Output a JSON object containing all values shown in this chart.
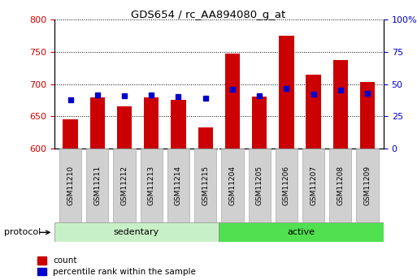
{
  "title": "GDS654 / rc_AA894080_g_at",
  "samples": [
    "GSM11210",
    "GSM11211",
    "GSM11212",
    "GSM11213",
    "GSM11214",
    "GSM11215",
    "GSM11204",
    "GSM11205",
    "GSM11206",
    "GSM11207",
    "GSM11208",
    "GSM11209"
  ],
  "count_values": [
    645,
    679,
    665,
    679,
    675,
    632,
    747,
    681,
    775,
    715,
    737,
    703
  ],
  "percentile_values": [
    675,
    683,
    682,
    683,
    681,
    678,
    692,
    682,
    693,
    684,
    691,
    686
  ],
  "ylim_left": [
    600,
    800
  ],
  "ylim_right": [
    0,
    100
  ],
  "yticks_left": [
    600,
    650,
    700,
    750,
    800
  ],
  "yticks_right": [
    0,
    25,
    50,
    75,
    100
  ],
  "bar_color": "#cc0000",
  "percentile_color": "#0000cc",
  "background_color": "#ffffff",
  "plot_bg_color": "#ffffff",
  "tick_label_color_left": "#cc0000",
  "tick_label_color_right": "#0000cc",
  "sedentary_group_count": 6,
  "active_group_count": 6,
  "sedentary_color": "#c8f0c8",
  "active_color": "#50e050",
  "protocol_label": "protocol",
  "legend_count": "count",
  "legend_percentile": "percentile rank within the sample",
  "bar_width": 0.55,
  "base_value": 600,
  "label_box_color": "#d0d0d0",
  "label_box_edge": "#aaaaaa"
}
